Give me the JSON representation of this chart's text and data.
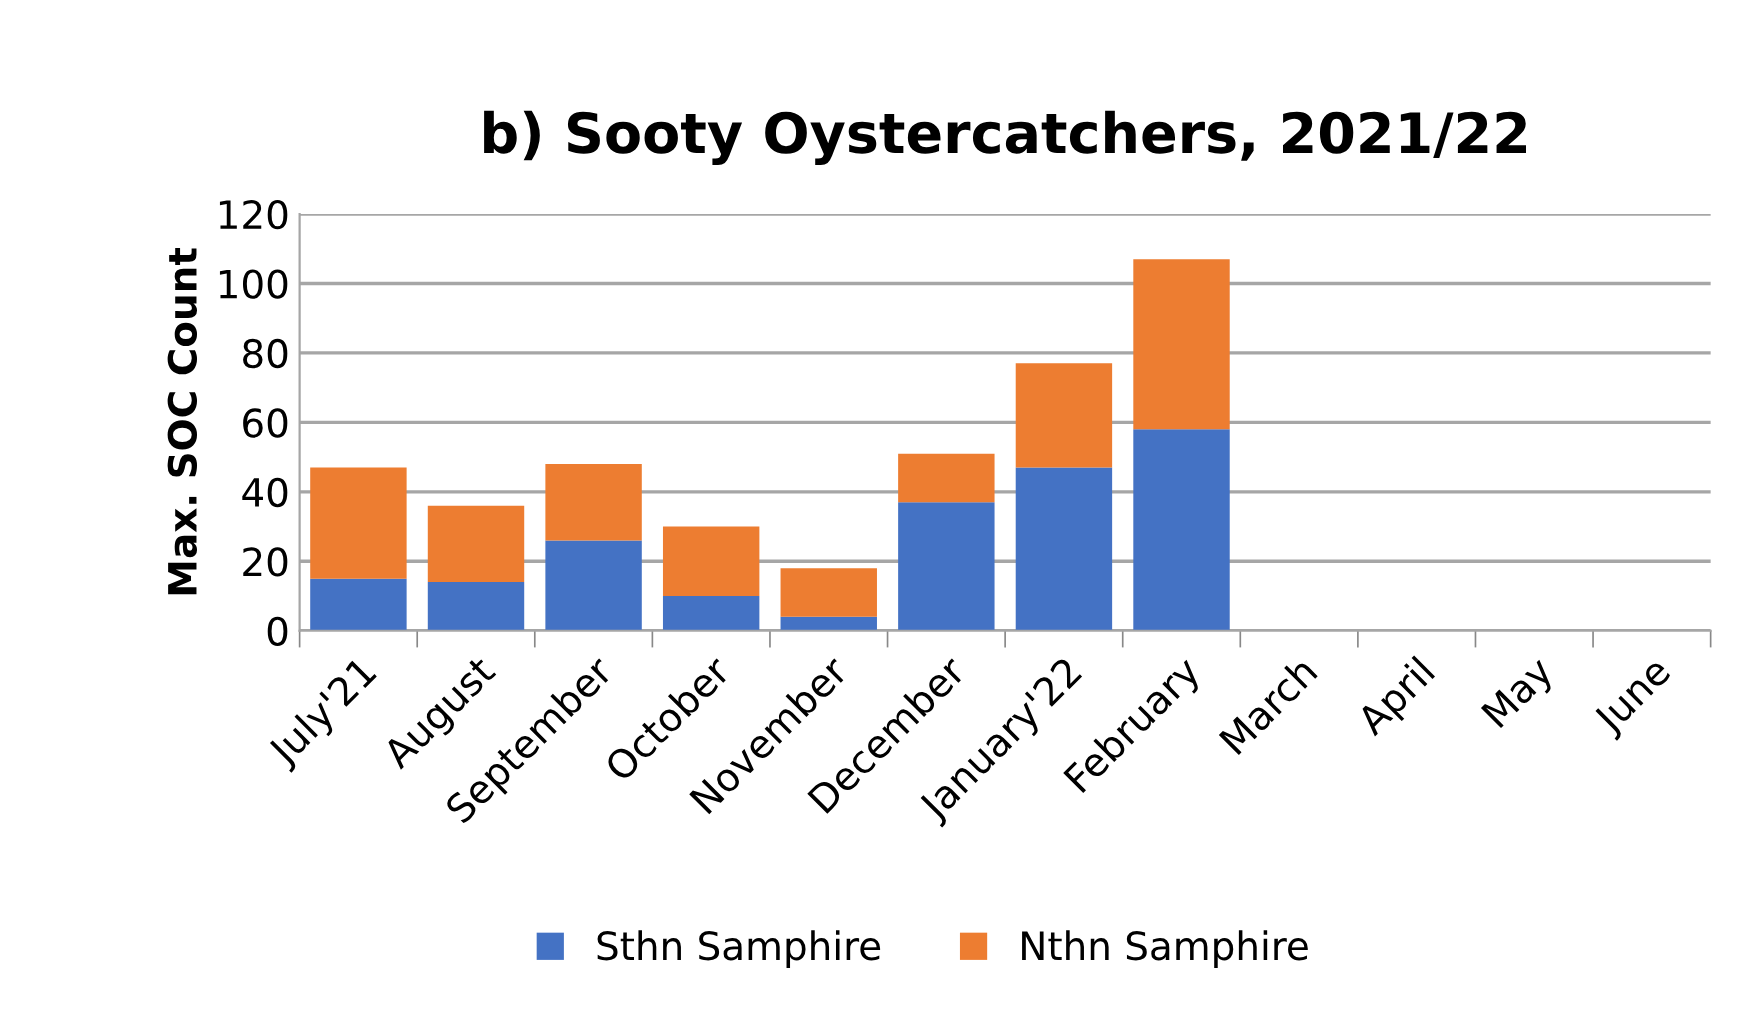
{
  "chart_data": {
    "type": "bar",
    "title": "b) Sooty Oystercatchers, 2021/22",
    "ylabel": "Max. SOC Count",
    "categories": [
      "July'21",
      "August",
      "September",
      "October",
      "November",
      "December",
      "January'22",
      "February",
      "March",
      "April",
      "May",
      "June"
    ],
    "series": [
      {
        "name": "Sthn Samphire",
        "color": "#4472c4",
        "values": [
          15,
          14,
          26,
          10,
          4,
          37,
          47,
          58,
          null,
          null,
          null,
          null
        ]
      },
      {
        "name": "Nthn Samphire",
        "color": "#ed7d31",
        "values": [
          32,
          22,
          22,
          20,
          14,
          14,
          30,
          49,
          null,
          null,
          null,
          null
        ]
      }
    ],
    "stacked": true,
    "ylim": [
      0,
      120
    ],
    "yticks": [
      0,
      20,
      40,
      60,
      80,
      100,
      120
    ],
    "grid": "y",
    "legend": "bottom"
  }
}
